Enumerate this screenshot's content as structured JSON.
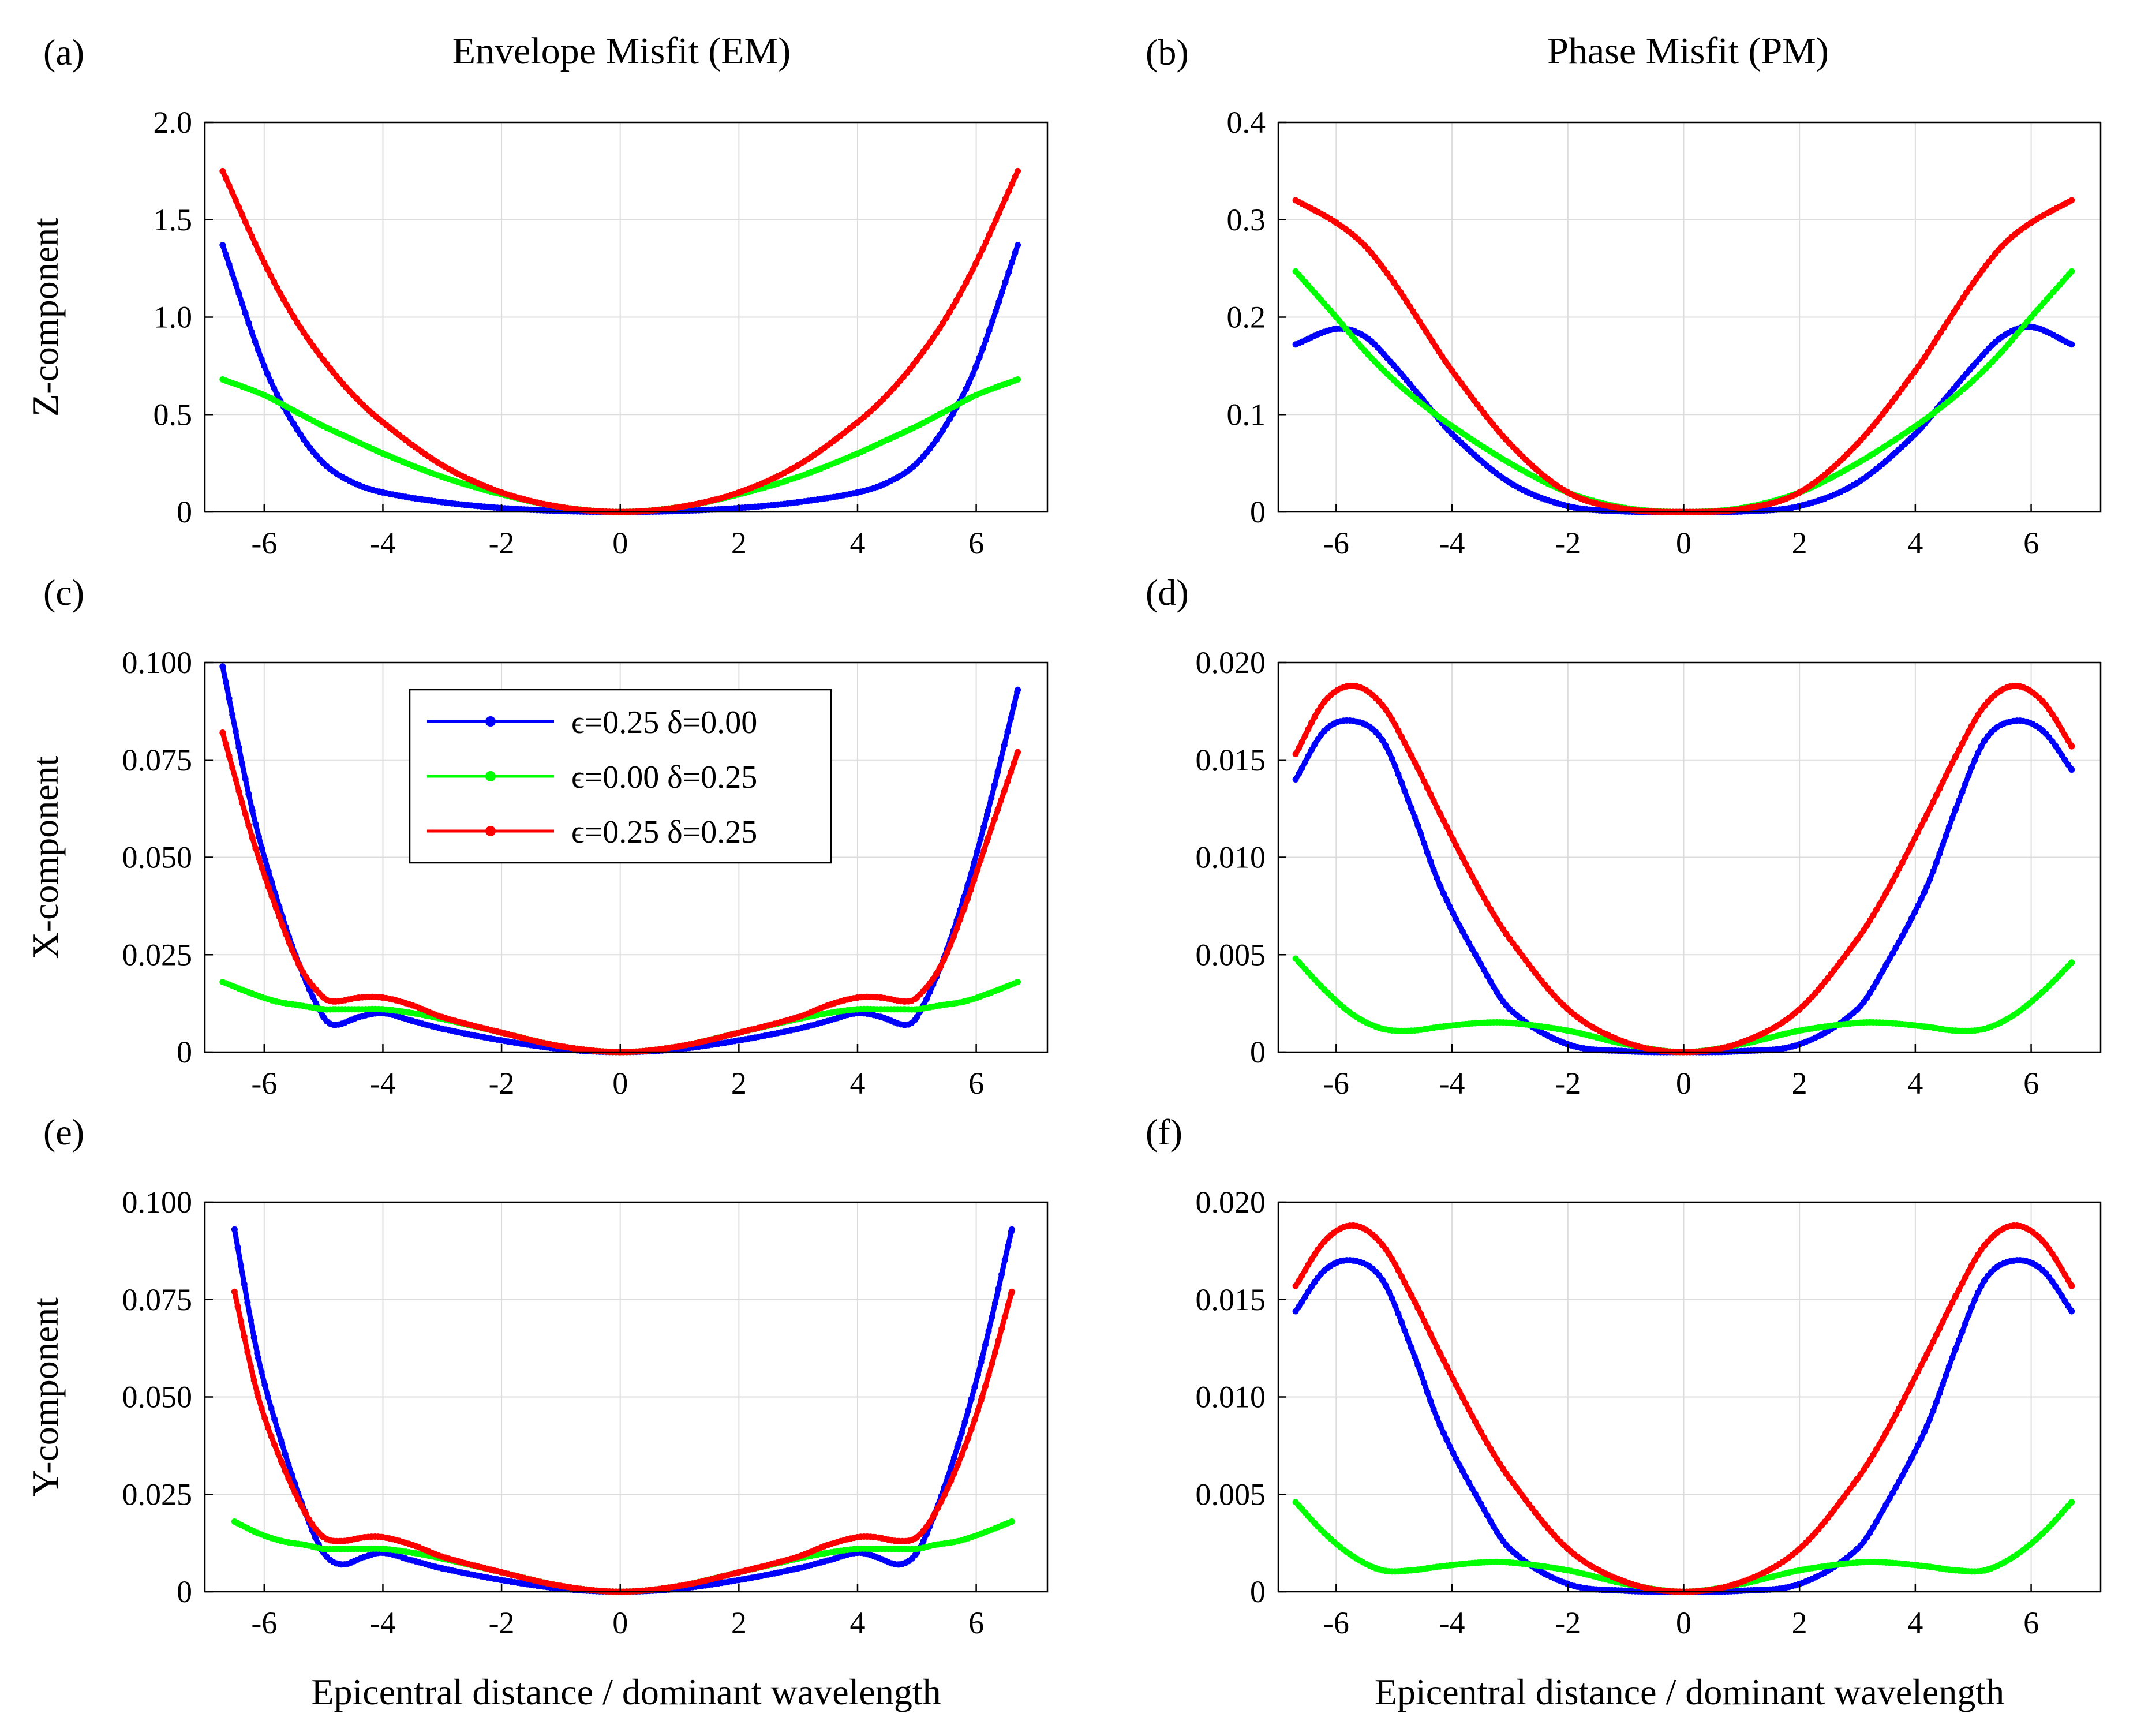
{
  "figure": {
    "column_titles": [
      "Envelope Misfit  (EM)",
      "Phase Misfit  (PM)"
    ],
    "series_colors": [
      "#0000ff",
      "#00ff00",
      "#ff0000"
    ],
    "legend": [
      "ϵ=0.25  δ=0.00",
      "ϵ=0.00  δ=0.25",
      "ϵ=0.25  δ=0.25"
    ]
  },
  "chart_data": [
    {
      "type": "line",
      "panel": "(a)",
      "title": "Envelope Misfit  (EM)",
      "xlabel": "",
      "ylabel": "Z-component",
      "xlim": [
        -7,
        7.2
      ],
      "ylim": [
        0,
        2.0
      ],
      "xticks": [
        "-6",
        "-4",
        "-2",
        "0",
        "2",
        "4",
        "6"
      ],
      "yticks": [
        "0",
        "0.5",
        "1.0",
        "1.5",
        "2.0"
      ],
      "grid": true,
      "x": [
        -6.7,
        -6,
        -5.5,
        -5,
        -4.5,
        -4,
        -3,
        -2,
        -1,
        0,
        1,
        2,
        3,
        4,
        4.5,
        5,
        5.5,
        6,
        6.7
      ],
      "series": [
        {
          "name": "ϵ=0.25  δ=0.00",
          "color": "#0000ff",
          "values": [
            1.37,
            0.75,
            0.45,
            0.25,
            0.15,
            0.1,
            0.05,
            0.02,
            0.005,
            0,
            0.005,
            0.02,
            0.05,
            0.1,
            0.15,
            0.25,
            0.45,
            0.75,
            1.37
          ]
        },
        {
          "name": "ϵ=0.00  δ=0.25",
          "color": "#00ff00",
          "values": [
            0.68,
            0.6,
            0.52,
            0.44,
            0.37,
            0.3,
            0.18,
            0.09,
            0.025,
            0,
            0.025,
            0.09,
            0.18,
            0.3,
            0.37,
            0.44,
            0.52,
            0.6,
            0.68
          ]
        },
        {
          "name": "ϵ=0.25  δ=0.25",
          "color": "#ff0000",
          "values": [
            1.75,
            1.28,
            1.0,
            0.78,
            0.6,
            0.46,
            0.24,
            0.1,
            0.025,
            0,
            0.025,
            0.1,
            0.24,
            0.46,
            0.6,
            0.78,
            1.0,
            1.28,
            1.75
          ]
        }
      ]
    },
    {
      "type": "line",
      "panel": "(b)",
      "title": "Phase Misfit  (PM)",
      "xlabel": "",
      "ylabel": "",
      "xlim": [
        -7,
        7.2
      ],
      "ylim": [
        0,
        0.4
      ],
      "xticks": [
        "-6",
        "-4",
        "-2",
        "0",
        "2",
        "4",
        "6"
      ],
      "yticks": [
        "0",
        "0.1",
        "0.2",
        "0.3",
        "0.4"
      ],
      "grid": true,
      "x": [
        -6.7,
        -6,
        -5.5,
        -5,
        -4.5,
        -4,
        -3,
        -2,
        -1,
        0,
        1,
        2,
        3,
        4,
        4.5,
        5,
        5.5,
        6,
        6.7
      ],
      "series": [
        {
          "name": "ϵ=0.25  δ=0.00",
          "color": "#0000ff",
          "values": [
            0.172,
            0.188,
            0.18,
            0.15,
            0.115,
            0.08,
            0.03,
            0.006,
            0.0005,
            0,
            0.0005,
            0.006,
            0.03,
            0.08,
            0.115,
            0.15,
            0.18,
            0.19,
            0.172
          ]
        },
        {
          "name": "ϵ=0.00  δ=0.25",
          "color": "#00ff00",
          "values": [
            0.247,
            0.2,
            0.165,
            0.135,
            0.11,
            0.088,
            0.05,
            0.02,
            0.004,
            0,
            0.004,
            0.02,
            0.05,
            0.088,
            0.11,
            0.135,
            0.165,
            0.2,
            0.247
          ]
        },
        {
          "name": "ϵ=0.25  δ=0.25",
          "color": "#ff0000",
          "values": [
            0.32,
            0.297,
            0.273,
            0.235,
            0.19,
            0.145,
            0.07,
            0.02,
            0.003,
            0,
            0.003,
            0.02,
            0.07,
            0.145,
            0.19,
            0.235,
            0.273,
            0.297,
            0.32
          ]
        }
      ]
    },
    {
      "type": "line",
      "panel": "(c)",
      "xlabel": "",
      "ylabel": "X-component",
      "xlim": [
        -7,
        7.2
      ],
      "ylim": [
        0,
        0.1
      ],
      "xticks": [
        "-6",
        "-4",
        "-2",
        "0",
        "2",
        "4",
        "6"
      ],
      "yticks": [
        "0",
        "0.025",
        "0.050",
        "0.075",
        "0.100"
      ],
      "grid": true,
      "legend_position": "top-center",
      "x": [
        -6.7,
        -6.2,
        -5.8,
        -5.4,
        -5,
        -4.8,
        -4.4,
        -4,
        -3.5,
        -3,
        -2,
        -1,
        0,
        1,
        2,
        3,
        3.5,
        4,
        4.4,
        4.8,
        5,
        5.4,
        5.8,
        6.2,
        6.7
      ],
      "series": [
        {
          "name": "ϵ=0.25  δ=0.00",
          "color": "#0000ff",
          "values": [
            0.099,
            0.062,
            0.04,
            0.022,
            0.009,
            0.007,
            0.009,
            0.01,
            0.008,
            0.006,
            0.003,
            0.0008,
            0,
            0.0008,
            0.003,
            0.006,
            0.008,
            0.01,
            0.009,
            0.007,
            0.009,
            0.022,
            0.04,
            0.062,
            0.093
          ]
        },
        {
          "name": "ϵ=0.00  δ=0.25",
          "color": "#00ff00",
          "values": [
            0.018,
            0.015,
            0.013,
            0.012,
            0.011,
            0.011,
            0.011,
            0.011,
            0.01,
            0.0085,
            0.005,
            0.0015,
            0,
            0.0015,
            0.005,
            0.0085,
            0.01,
            0.011,
            0.011,
            0.011,
            0.011,
            0.012,
            0.013,
            0.015,
            0.018
          ]
        },
        {
          "name": "ϵ=0.25  δ=0.25",
          "color": "#ff0000",
          "values": [
            0.082,
            0.055,
            0.037,
            0.022,
            0.014,
            0.013,
            0.014,
            0.014,
            0.012,
            0.009,
            0.005,
            0.0015,
            0,
            0.0015,
            0.005,
            0.009,
            0.012,
            0.014,
            0.014,
            0.013,
            0.014,
            0.022,
            0.037,
            0.055,
            0.077
          ]
        }
      ]
    },
    {
      "type": "line",
      "panel": "(d)",
      "xlabel": "",
      "ylabel": "",
      "xlim": [
        -7,
        7.2
      ],
      "ylim": [
        0,
        0.02
      ],
      "xticks": [
        "-6",
        "-4",
        "-2",
        "0",
        "2",
        "4",
        "6"
      ],
      "yticks": [
        "0",
        "0.005",
        "0.010",
        "0.015",
        "0.020"
      ],
      "grid": true,
      "x": [
        -6.7,
        -6.2,
        -5.7,
        -5.2,
        -4.7,
        -4.2,
        -3.5,
        -3,
        -2,
        -1,
        0,
        1,
        2,
        3,
        3.5,
        4.2,
        4.7,
        5.2,
        5.7,
        6.2,
        6.7
      ],
      "series": [
        {
          "name": "ϵ=0.25  δ=0.00",
          "color": "#0000ff",
          "values": [
            0.014,
            0.0165,
            0.017,
            0.016,
            0.0125,
            0.0085,
            0.0045,
            0.0022,
            0.0004,
            5e-05,
            0,
            5e-05,
            0.0004,
            0.0022,
            0.0045,
            0.0085,
            0.0125,
            0.016,
            0.017,
            0.0165,
            0.0145
          ]
        },
        {
          "name": "ϵ=0.00  δ=0.25",
          "color": "#00ff00",
          "values": [
            0.0048,
            0.0032,
            0.0019,
            0.0012,
            0.0011,
            0.0013,
            0.0015,
            0.0015,
            0.0011,
            0.0004,
            0,
            0.0004,
            0.0011,
            0.0015,
            0.0015,
            0.0013,
            0.0011,
            0.0012,
            0.0019,
            0.0031,
            0.0046
          ]
        },
        {
          "name": "ϵ=0.25  δ=0.25",
          "color": "#ff0000",
          "values": [
            0.0153,
            0.018,
            0.0188,
            0.0178,
            0.0152,
            0.0122,
            0.0082,
            0.0058,
            0.0022,
            0.0005,
            0,
            0.0005,
            0.0022,
            0.0058,
            0.0082,
            0.0122,
            0.0152,
            0.0178,
            0.0188,
            0.018,
            0.0157
          ]
        }
      ]
    },
    {
      "type": "line",
      "panel": "(e)",
      "xlabel": "Epicentral distance / dominant wavelength",
      "ylabel": "Y-component",
      "xlim": [
        -7,
        7.2
      ],
      "ylim": [
        0,
        0.1
      ],
      "xticks": [
        "-6",
        "-4",
        "-2",
        "0",
        "2",
        "4",
        "6"
      ],
      "yticks": [
        "0",
        "0.025",
        "0.050",
        "0.075",
        "0.100"
      ],
      "grid": true,
      "x": [
        -6.5,
        -6.1,
        -5.7,
        -5.3,
        -5,
        -4.7,
        -4.3,
        -4,
        -3.5,
        -3,
        -2,
        -1,
        0,
        1,
        2,
        3,
        3.5,
        4,
        4.3,
        4.7,
        5,
        5.3,
        5.7,
        6.1,
        6.6
      ],
      "series": [
        {
          "name": "ϵ=0.25  δ=0.00",
          "color": "#0000ff",
          "values": [
            0.093,
            0.06,
            0.038,
            0.02,
            0.01,
            0.007,
            0.009,
            0.01,
            0.008,
            0.006,
            0.003,
            0.0008,
            0,
            0.0008,
            0.003,
            0.006,
            0.008,
            0.01,
            0.009,
            0.007,
            0.01,
            0.02,
            0.038,
            0.06,
            0.093
          ]
        },
        {
          "name": "ϵ=0.00  δ=0.25",
          "color": "#00ff00",
          "values": [
            0.018,
            0.015,
            0.013,
            0.012,
            0.011,
            0.011,
            0.011,
            0.011,
            0.01,
            0.0085,
            0.005,
            0.0015,
            0,
            0.0015,
            0.005,
            0.0085,
            0.01,
            0.011,
            0.011,
            0.011,
            0.011,
            0.012,
            0.013,
            0.015,
            0.018
          ]
        },
        {
          "name": "ϵ=0.25  δ=0.25",
          "color": "#ff0000",
          "values": [
            0.077,
            0.05,
            0.033,
            0.02,
            0.014,
            0.013,
            0.014,
            0.014,
            0.012,
            0.009,
            0.005,
            0.0015,
            0,
            0.0015,
            0.005,
            0.009,
            0.012,
            0.014,
            0.014,
            0.013,
            0.014,
            0.02,
            0.033,
            0.05,
            0.077
          ]
        }
      ]
    },
    {
      "type": "line",
      "panel": "(f)",
      "xlabel": "Epicentral distance / dominant wavelength",
      "ylabel": "",
      "xlim": [
        -7,
        7.2
      ],
      "ylim": [
        0,
        0.02
      ],
      "xticks": [
        "-6",
        "-4",
        "-2",
        "0",
        "2",
        "4",
        "6"
      ],
      "yticks": [
        "0",
        "0.005",
        "0.010",
        "0.015",
        "0.020"
      ],
      "grid": true,
      "x": [
        -6.7,
        -6.2,
        -5.7,
        -5.2,
        -4.7,
        -4.2,
        -3.5,
        -3,
        -2,
        -1,
        0,
        1,
        2,
        3,
        3.5,
        4.2,
        4.7,
        5.2,
        5.7,
        6.2,
        6.7
      ],
      "series": [
        {
          "name": "ϵ=0.25  δ=0.00",
          "color": "#0000ff",
          "values": [
            0.0144,
            0.0165,
            0.017,
            0.016,
            0.0125,
            0.0085,
            0.0045,
            0.0022,
            0.0004,
            5e-05,
            0,
            5e-05,
            0.0004,
            0.0022,
            0.0045,
            0.0085,
            0.0125,
            0.016,
            0.017,
            0.0165,
            0.0144
          ]
        },
        {
          "name": "ϵ=0.00  δ=0.25",
          "color": "#00ff00",
          "values": [
            0.0046,
            0.003,
            0.0018,
            0.0011,
            0.0011,
            0.0013,
            0.0015,
            0.0015,
            0.0011,
            0.0004,
            0,
            0.0004,
            0.0011,
            0.0015,
            0.0015,
            0.0013,
            0.0011,
            0.0011,
            0.0018,
            0.003,
            0.0046
          ]
        },
        {
          "name": "ϵ=0.25  δ=0.25",
          "color": "#ff0000",
          "values": [
            0.0157,
            0.018,
            0.0188,
            0.0178,
            0.0152,
            0.0122,
            0.0082,
            0.0058,
            0.0022,
            0.0005,
            0,
            0.0005,
            0.0022,
            0.0058,
            0.0082,
            0.0122,
            0.0152,
            0.0178,
            0.0188,
            0.018,
            0.0157
          ]
        }
      ]
    }
  ]
}
